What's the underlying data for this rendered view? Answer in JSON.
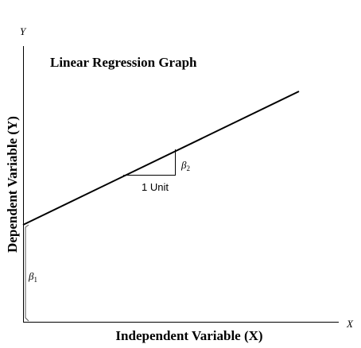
{
  "diagram": {
    "title": "Linear Regression Graph",
    "x_axis_label": "Independent Variable (X)",
    "y_axis_label": "Dependent Variable (Y)",
    "x_axis_letter": "X",
    "y_axis_letter": "Y",
    "intercept_symbol": "β",
    "intercept_subscript": "1",
    "slope_symbol": "β",
    "slope_subscript": "2",
    "unit_label": "1 Unit",
    "colors": {
      "line": "#000000",
      "axes": "#000000",
      "background": "#ffffff"
    }
  }
}
